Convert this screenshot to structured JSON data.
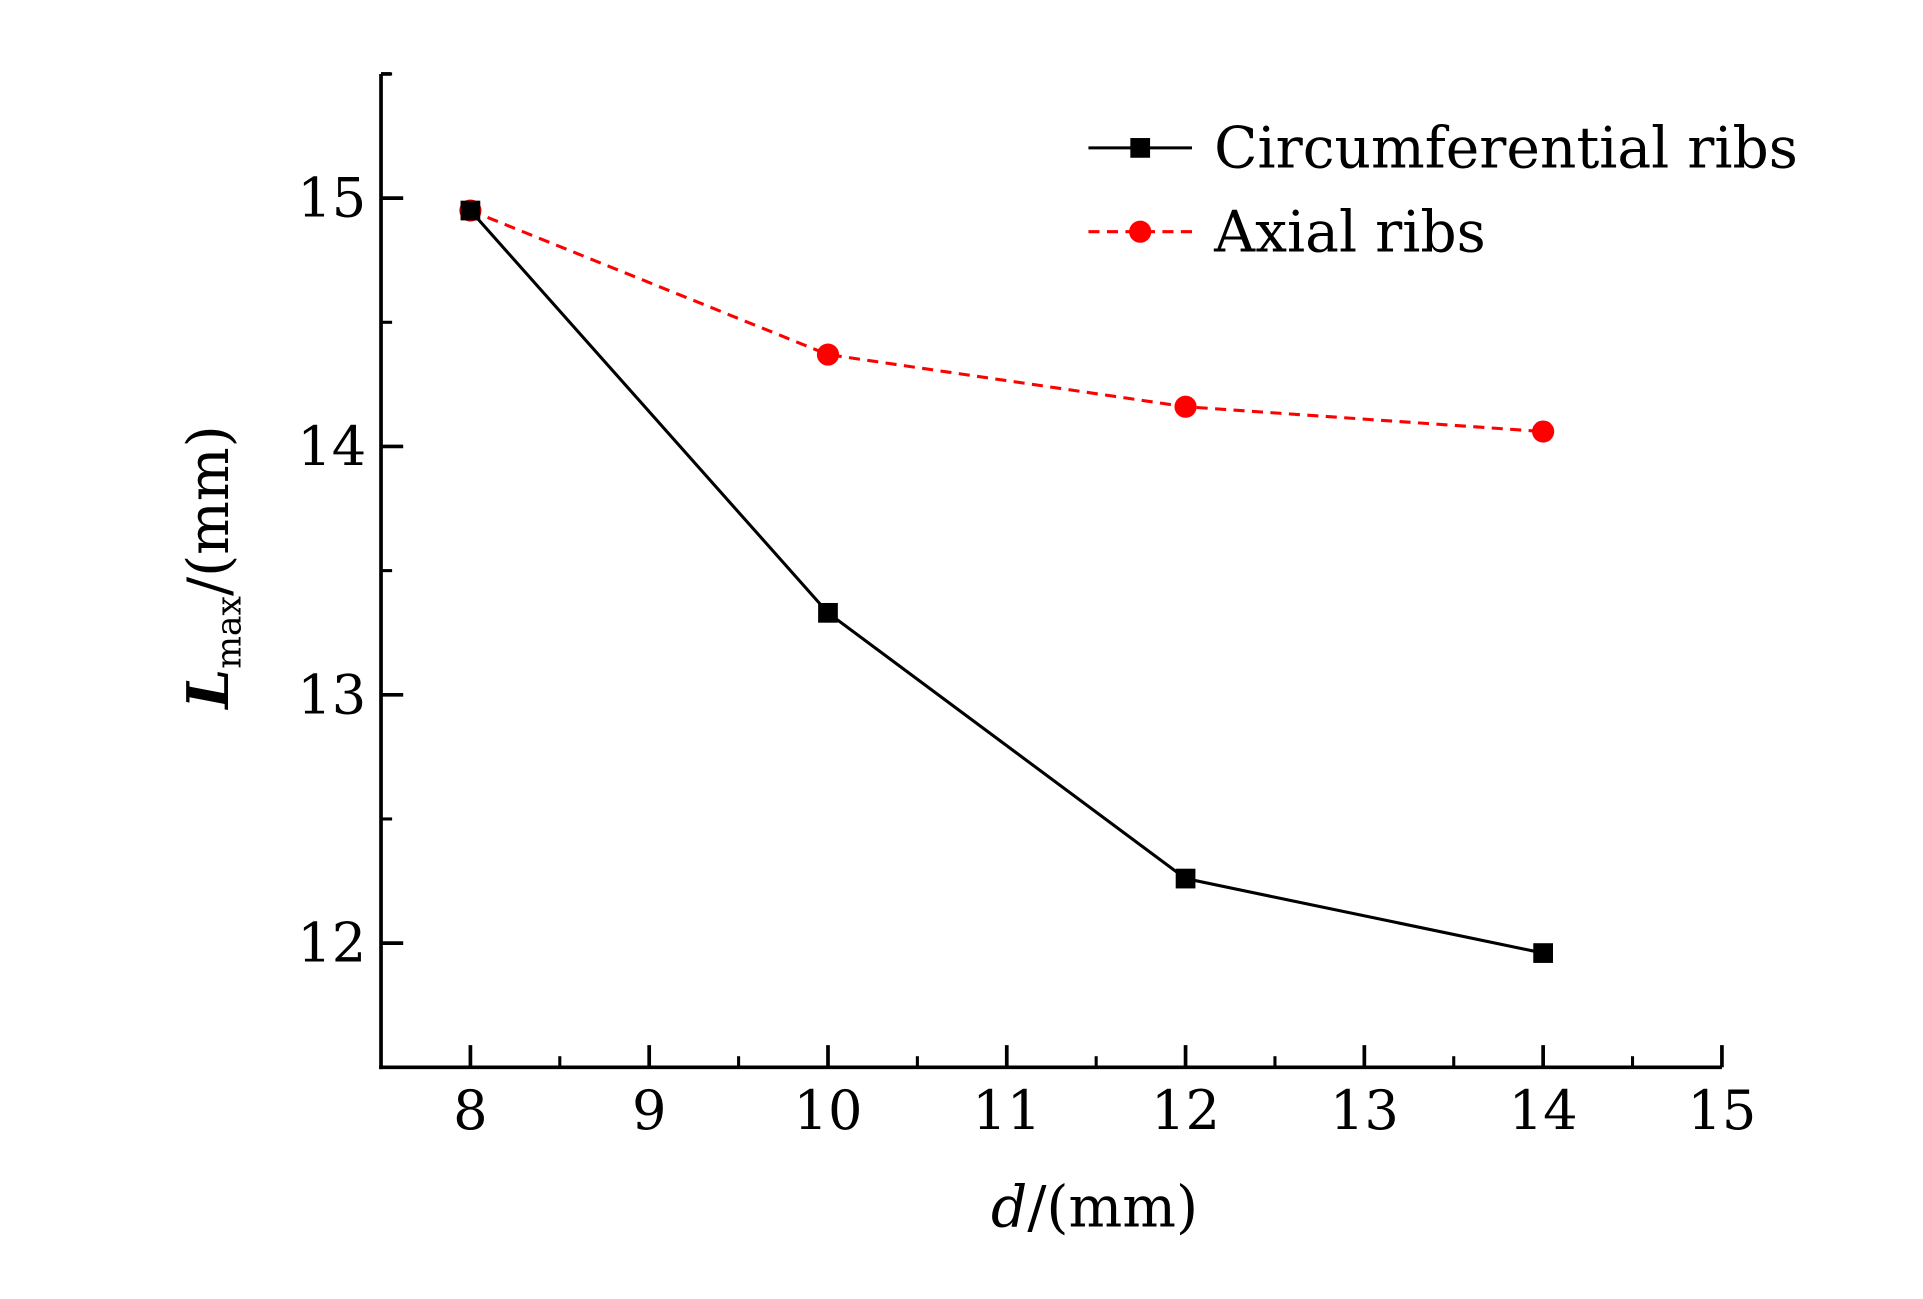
{
  "chart_data": {
    "type": "line",
    "title": "",
    "xlabel": {
      "main": "d",
      "unit": "/(mm)"
    },
    "ylabel": {
      "main": "L",
      "sub": "max",
      "unit": "/(mm)"
    },
    "xlim": [
      7.5,
      15
    ],
    "ylim": [
      11.5,
      15.5
    ],
    "xticks": [
      "8",
      "9",
      "10",
      "11",
      "12",
      "13",
      "14",
      "15"
    ],
    "yticks": [
      "12",
      "13",
      "14",
      "15"
    ],
    "grid": false,
    "legend_position": "top-right",
    "x": [
      8,
      10,
      12,
      14
    ],
    "series": [
      {
        "name": "Circumferential ribs",
        "values": [
          14.95,
          13.33,
          12.26,
          11.96
        ],
        "color": "#000000",
        "marker": "square",
        "line": "solid"
      },
      {
        "name": "Axial ribs",
        "values": [
          14.95,
          14.37,
          14.16,
          14.06
        ],
        "color": "#ff0000",
        "marker": "circle",
        "line": "dashed"
      }
    ]
  }
}
